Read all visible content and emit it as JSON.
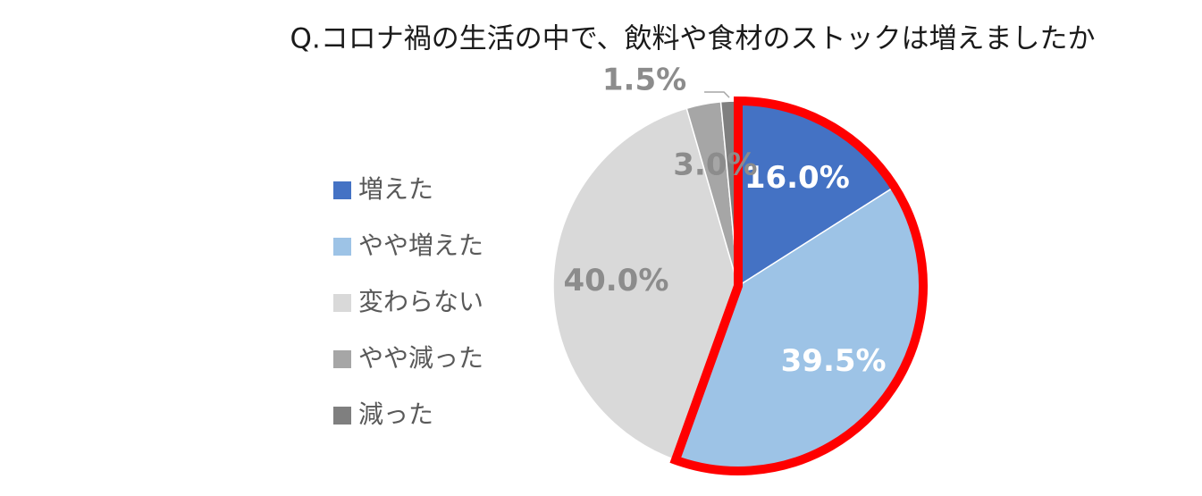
{
  "chart_data": {
    "type": "pie",
    "title": "Q.コロナ禍の生活の中で、飲料や食材のストックは増えましたか",
    "categories": [
      "増えた",
      "やや増えた",
      "変わらない",
      "やや減った",
      "減った"
    ],
    "values": [
      16.0,
      39.5,
      40.0,
      3.0,
      1.5
    ],
    "value_labels": [
      "16.0%",
      "39.5%",
      "40.0%",
      "3.0%",
      "1.5%"
    ],
    "colors": [
      "#4472c4",
      "#9dc3e6",
      "#d9d9d9",
      "#a6a6a6",
      "#7f7f7f"
    ],
    "legend": "left"
  }
}
